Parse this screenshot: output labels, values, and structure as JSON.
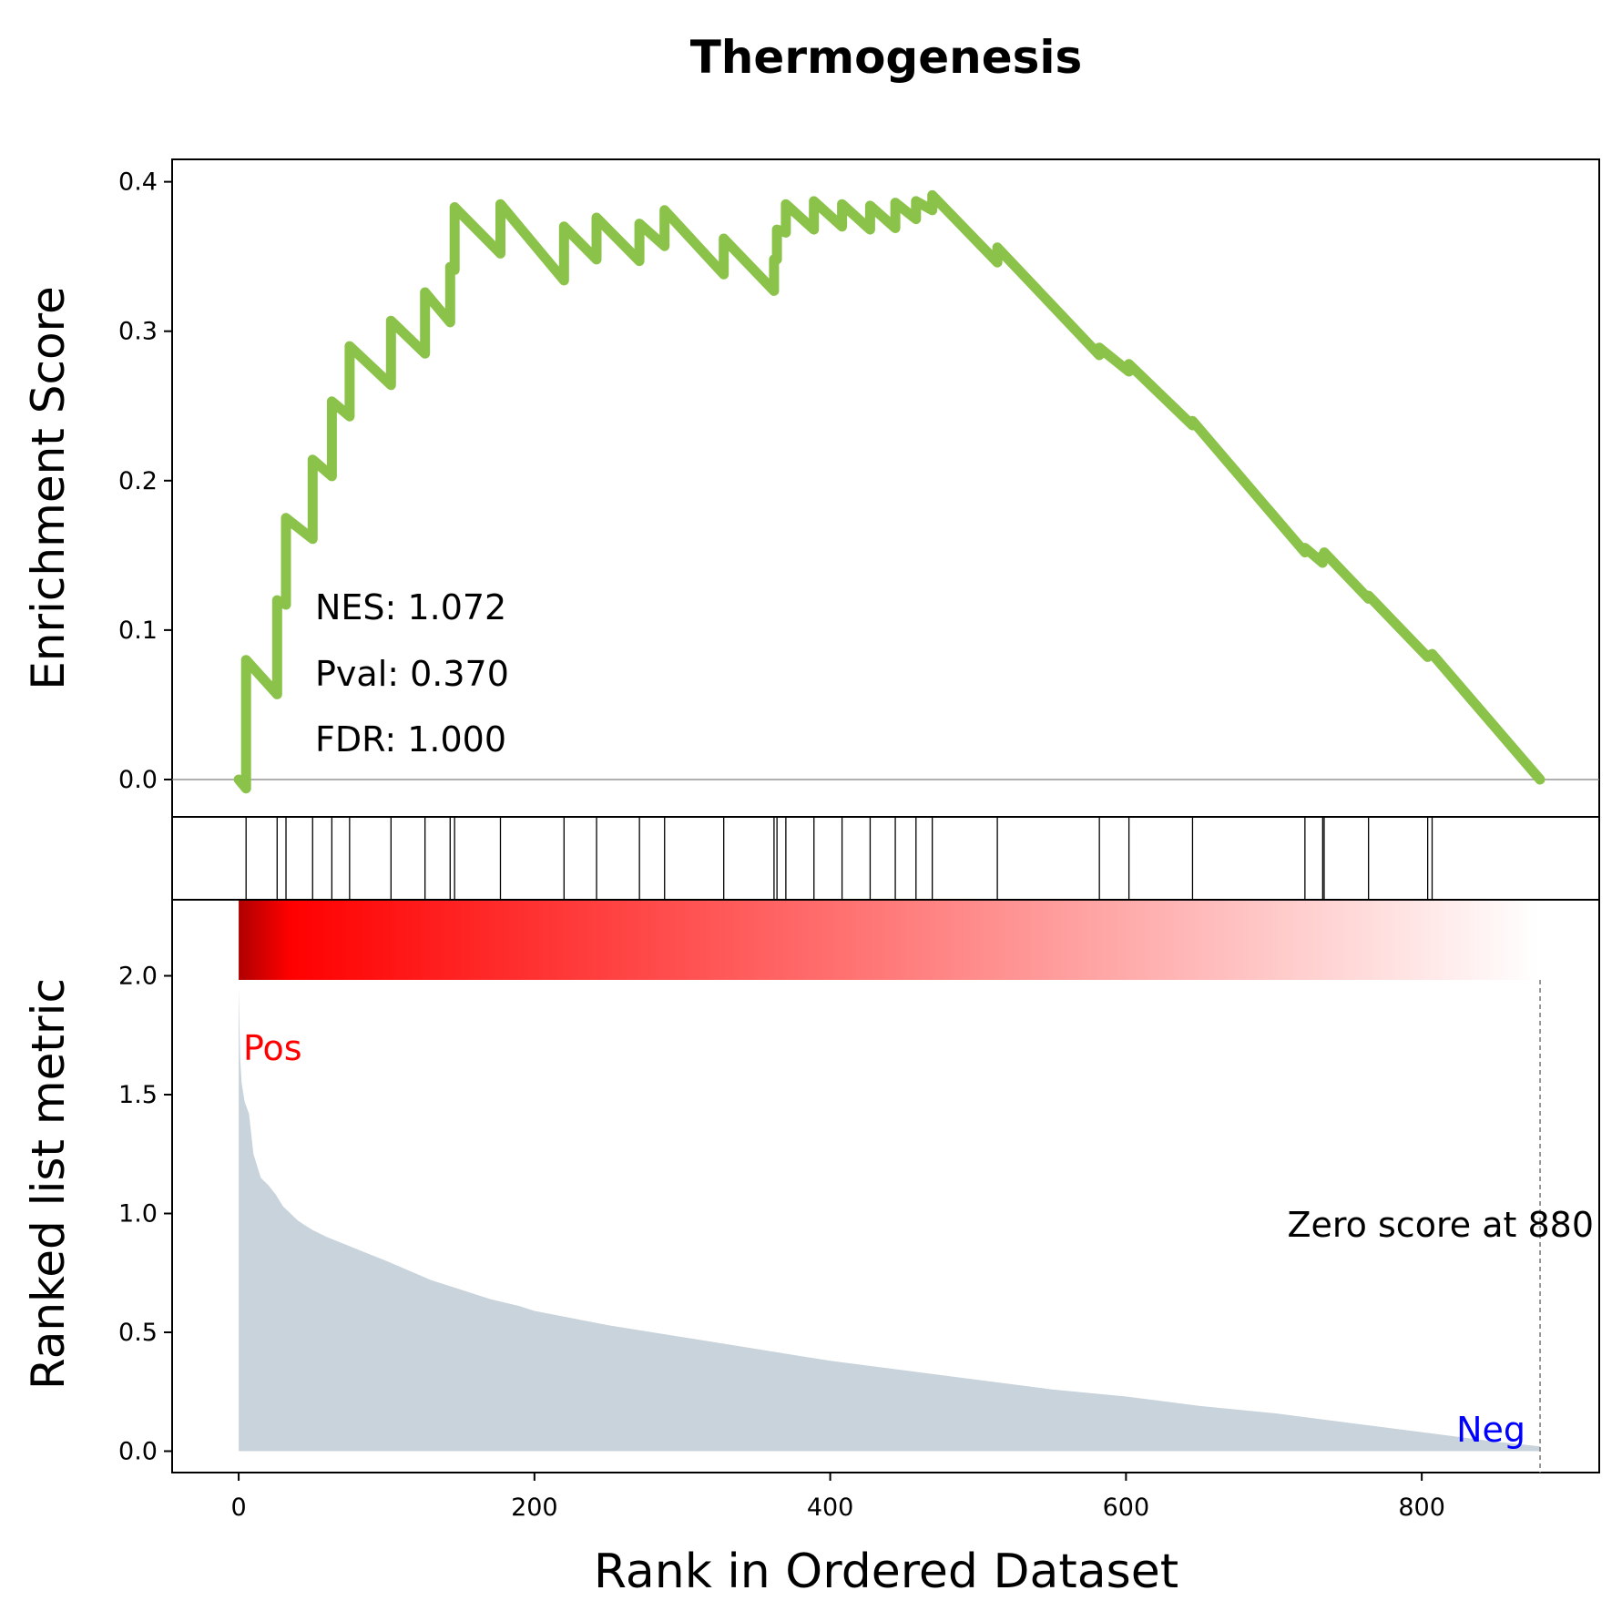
{
  "chart_data": {
    "type": "line",
    "title": "Thermogenesis",
    "xlabel": "Rank in Ordered Dataset",
    "ylabel_top": "Enrichment Score",
    "ylabel_bottom": "Ranked list metric",
    "xlim": [
      -45,
      920
    ],
    "xticks": [
      0,
      200,
      400,
      600,
      800
    ],
    "xtick_labels": [
      "0",
      "200",
      "400",
      "600",
      "800"
    ],
    "es_panel": {
      "ylim": [
        -0.025,
        0.415
      ],
      "yticks": [
        0.0,
        0.1,
        0.2,
        0.3,
        0.4
      ],
      "ytick_labels": [
        "0.0",
        "0.1",
        "0.2",
        "0.3",
        "0.4"
      ],
      "line_color": "#8bc34a",
      "zero_line_color": "#808080",
      "hits": [
        5,
        26,
        32,
        50,
        63,
        75,
        103,
        126,
        143,
        146,
        177,
        220,
        242,
        271,
        288,
        328,
        362,
        364,
        370,
        389,
        408,
        427,
        444,
        458,
        469,
        513,
        582,
        602,
        645,
        721,
        733,
        734,
        764,
        804,
        807
      ],
      "es_curve": {
        "x": [
          0,
          5,
          5,
          26,
          26,
          32,
          32,
          50,
          50,
          63,
          63,
          75,
          75,
          103,
          103,
          126,
          126,
          143,
          143,
          146,
          146,
          177,
          177,
          220,
          220,
          242,
          242,
          271,
          271,
          288,
          288,
          328,
          328,
          362,
          362,
          364,
          364,
          370,
          370,
          389,
          389,
          408,
          408,
          427,
          427,
          444,
          444,
          458,
          458,
          469,
          469,
          513,
          513,
          582,
          582,
          602,
          602,
          645,
          645,
          721,
          721,
          733,
          733,
          734,
          734,
          764,
          764,
          804,
          804,
          807,
          807,
          880
        ],
        "y": [
          0.0,
          -0.006,
          0.08,
          0.057,
          0.12,
          0.117,
          0.175,
          0.161,
          0.214,
          0.203,
          0.253,
          0.243,
          0.29,
          0.264,
          0.307,
          0.285,
          0.326,
          0.306,
          0.343,
          0.341,
          0.383,
          0.352,
          0.385,
          0.334,
          0.37,
          0.348,
          0.376,
          0.347,
          0.372,
          0.357,
          0.381,
          0.338,
          0.362,
          0.327,
          0.348,
          0.348,
          0.368,
          0.366,
          0.385,
          0.368,
          0.387,
          0.37,
          0.385,
          0.368,
          0.384,
          0.369,
          0.386,
          0.375,
          0.387,
          0.381,
          0.391,
          0.346,
          0.356,
          0.284,
          0.289,
          0.273,
          0.278,
          0.237,
          0.24,
          0.152,
          0.155,
          0.145,
          0.15,
          0.15,
          0.152,
          0.121,
          0.123,
          0.082,
          0.082,
          0.084,
          0.084,
          0.0
        ]
      },
      "stats": {
        "nes": "NES: 1.072",
        "pval": "Pval: 0.370",
        "fdr": "FDR: 1.000"
      }
    },
    "metric_panel": {
      "ylim": [
        -0.09,
        2.32
      ],
      "yticks": [
        0.0,
        0.5,
        1.0,
        1.5,
        2.0
      ],
      "ytick_labels": [
        "0.0",
        "0.5",
        "1.0",
        "1.5",
        "2.0"
      ],
      "fill_color": "#c8d3dc",
      "zero_rank": 880,
      "zero_label": "Zero score at 880",
      "pos_label": "Pos",
      "neg_label": "Neg",
      "pos_color": "#ff0000",
      "neg_color": "#0000ff",
      "gradient_colors": [
        "#b00000",
        "#ff0000",
        "#ffffff"
      ],
      "metric_curve": {
        "x": [
          0,
          1,
          2,
          4,
          7,
          10,
          15,
          20,
          25,
          30,
          40,
          45,
          50,
          60,
          80,
          100,
          130,
          150,
          170,
          190,
          200,
          250,
          300,
          350,
          400,
          450,
          500,
          550,
          600,
          650,
          700,
          750,
          800,
          850,
          880
        ],
        "y": [
          1.95,
          1.65,
          1.55,
          1.47,
          1.42,
          1.25,
          1.15,
          1.12,
          1.08,
          1.03,
          0.97,
          0.95,
          0.93,
          0.9,
          0.85,
          0.8,
          0.72,
          0.68,
          0.64,
          0.61,
          0.59,
          0.53,
          0.48,
          0.43,
          0.38,
          0.34,
          0.3,
          0.26,
          0.23,
          0.19,
          0.16,
          0.12,
          0.08,
          0.04,
          0.02
        ]
      }
    }
  }
}
